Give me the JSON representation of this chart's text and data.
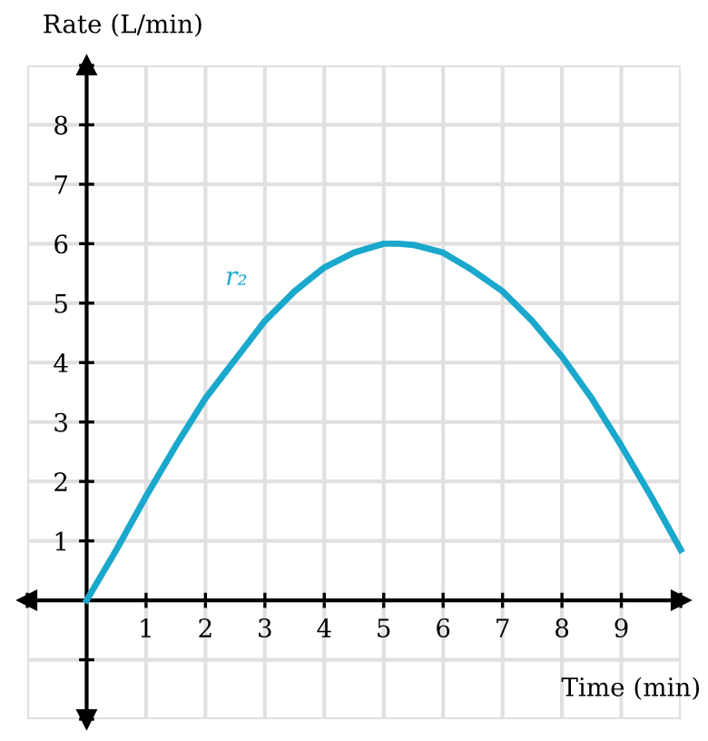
{
  "chart_data": {
    "type": "line",
    "xlabel": "Time (min)",
    "ylabel": "Rate (L/min)",
    "x": [
      0,
      0.5,
      1,
      1.5,
      2,
      2.5,
      3,
      3.5,
      4,
      4.5,
      5,
      5.25,
      5.5,
      6,
      6.5,
      7,
      7.5,
      8,
      8.5,
      9,
      9.5,
      10
    ],
    "series": [
      {
        "color": "#1aa8cc",
        "values": [
          0,
          0.85,
          1.75,
          2.6,
          3.4,
          4.05,
          4.7,
          5.2,
          5.6,
          5.85,
          6,
          6,
          5.98,
          5.85,
          5.55,
          5.2,
          4.7,
          4.1,
          3.4,
          2.6,
          1.75,
          0.85
        ]
      }
    ],
    "annotations": [
      "r₂"
    ],
    "xlim": [
      -1,
      10
    ],
    "ylim": [
      -2,
      9
    ],
    "xticks": [
      {
        "value": -1,
        "label": null
      },
      {
        "value": 0,
        "label": null
      },
      1,
      2,
      3,
      4,
      5,
      6,
      7,
      8,
      9,
      {
        "value": 10,
        "label": null
      }
    ],
    "yticks": [
      {
        "value": -2,
        "label": null
      },
      {
        "value": -1,
        "label": null
      },
      {
        "value": 0,
        "label": null
      },
      1,
      2,
      3,
      4,
      5,
      6,
      7,
      8,
      {
        "value": 9,
        "label": null
      }
    ],
    "grid": true,
    "marker": "none",
    "line_style": "solid"
  }
}
